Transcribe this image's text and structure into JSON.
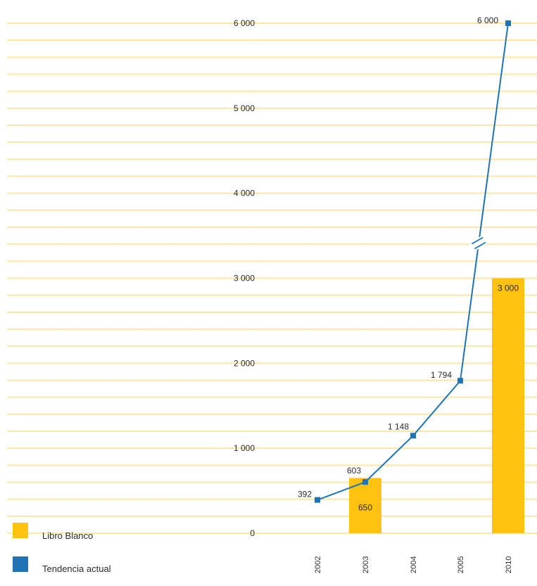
{
  "chart_data": {
    "type": "bar",
    "categories": [
      "2002",
      "2003",
      "2004",
      "2005",
      "2010"
    ],
    "series": [
      {
        "name": "Libro Blanco",
        "kind": "bar",
        "color": "#FFC20E",
        "values": [
          null,
          650,
          null,
          null,
          3000
        ],
        "labels": [
          "",
          "650",
          "",
          "",
          "3 000"
        ]
      },
      {
        "name": "Tendencia actual",
        "kind": "line",
        "color": "#1F73B7",
        "values": [
          392,
          603,
          1148,
          1794,
          6000
        ],
        "labels": [
          "392",
          "603",
          "1 148",
          "1 794",
          "6 000"
        ]
      }
    ],
    "y_ticks": [
      0,
      1000,
      2000,
      3000,
      4000,
      5000,
      6000
    ],
    "y_tick_labels": [
      "0",
      "1 000",
      "2 000",
      "3 000",
      "4 000",
      "5 000",
      "6 000"
    ],
    "axis_break_between": [
      "2005",
      "2010"
    ],
    "grid": true,
    "grid_color": "#FCE7A8",
    "legend_position": "bottom-left"
  }
}
